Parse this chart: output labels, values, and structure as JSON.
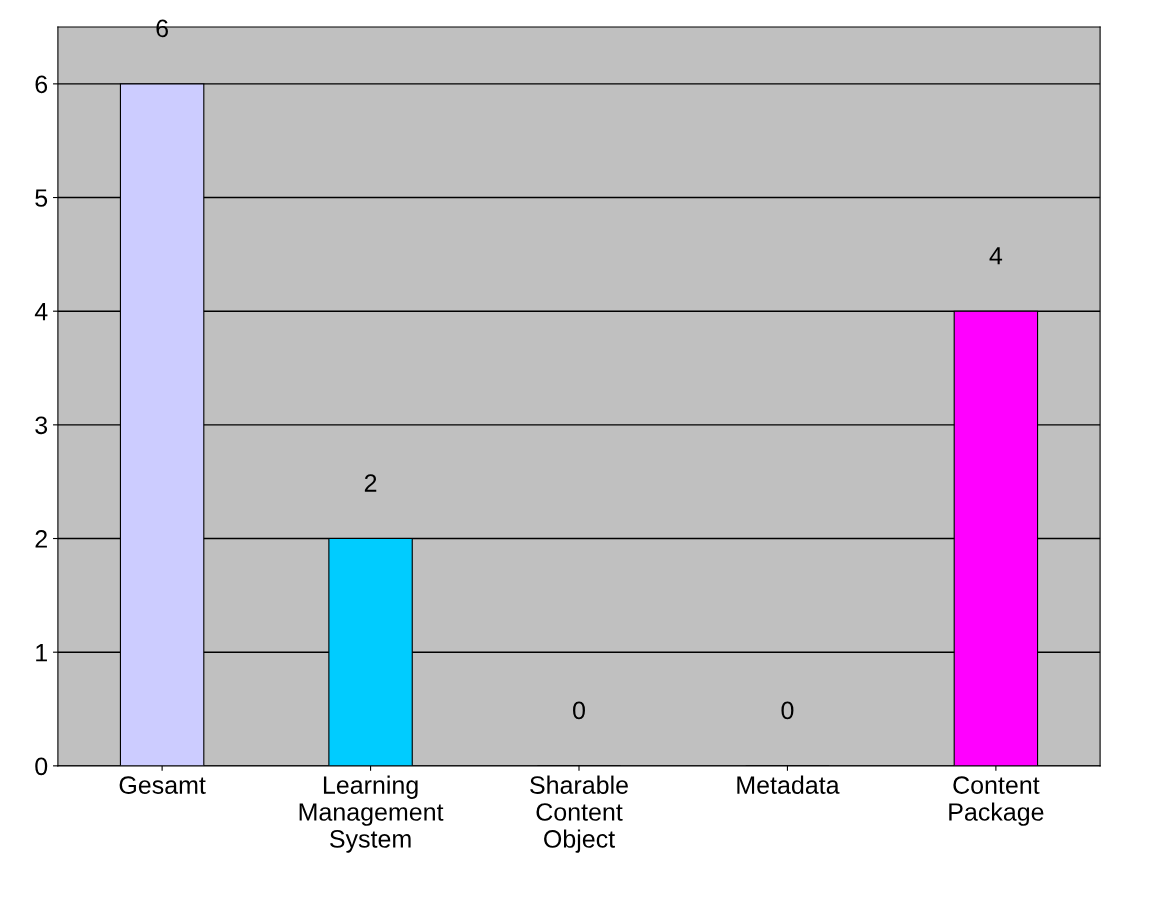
{
  "chart_data": {
    "type": "bar",
    "categories": [
      "Gesamt",
      "Learning\nManagement\nSystem",
      "Sharable\nContent\nObject",
      "Metadata",
      "Content\nPackage"
    ],
    "values": [
      6,
      2,
      0,
      0,
      4
    ],
    "colors": [
      "#ccccff",
      "#00ccff",
      "#00cc00",
      "#c8a000",
      "#ff00ff"
    ],
    "ylim": [
      0,
      6.5
    ],
    "yticks": [
      0,
      1,
      2,
      3,
      4,
      5,
      6
    ],
    "grid": "y",
    "data_labels": true
  }
}
